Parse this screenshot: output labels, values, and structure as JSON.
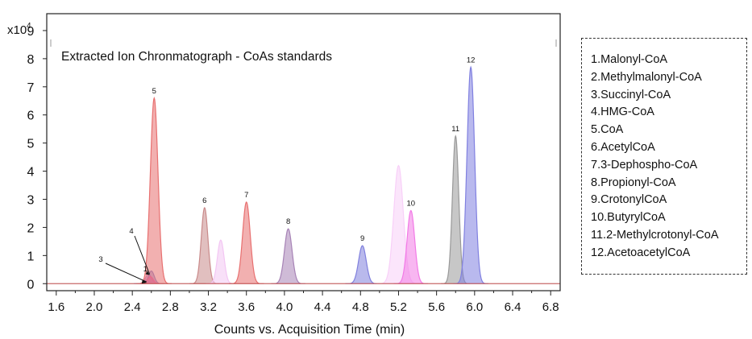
{
  "chart_data": {
    "type": "area",
    "title": "Extracted Ion Chronmatograph - CoAs standards",
    "xlabel": "Counts vs. Acquisition Time (min)",
    "ylabel": "",
    "y_multiplier_label": "x10",
    "y_multiplier_exp": "4",
    "xlim": [
      1.5,
      6.9
    ],
    "ylim": [
      -0.25,
      9.6
    ],
    "x_ticks": [
      "1.6",
      "2.0",
      "2.4",
      "2.8",
      "3.2",
      "3.6",
      "4.0",
      "4.4",
      "4.8",
      "5.2",
      "5.6",
      "6.0",
      "6.4",
      "6.8"
    ],
    "y_ticks": [
      "0",
      "1",
      "2",
      "3",
      "4",
      "5",
      "6",
      "7",
      "8",
      "9"
    ],
    "grid": false,
    "legend_position": "right",
    "legend": [
      "1.Malonyl-CoA",
      "2.Methylmalonyl-CoA",
      "3.Succinyl-CoA",
      "4.HMG-CoA",
      "5.CoA",
      "6.AcetylCoA",
      "7.3-Dephospho-CoA",
      "8.Propionyl-CoA",
      "9.CrotonylCoA",
      "10.ButyrylCoA",
      "11.2-Methylcrotonyl-CoA",
      "12.AcetoacetylCoA"
    ],
    "peaks": [
      {
        "label": "1",
        "rt": 2.57,
        "height": 0.35,
        "width": 0.03,
        "color": "#cc88cc"
      },
      {
        "label": "",
        "rt": 2.6,
        "height": 0.45,
        "width": 0.03,
        "color": "#8888cc"
      },
      {
        "label": "3",
        "rt": 2.55,
        "height": 0.12,
        "width": 0.03,
        "color": "#9999dd"
      },
      {
        "label": "4",
        "rt": 2.59,
        "height": 0.25,
        "width": 0.03,
        "color": "#ee66aa"
      },
      {
        "label": "5",
        "rt": 2.63,
        "height": 6.6,
        "width": 0.04,
        "color": "#e87070"
      },
      {
        "label": "6",
        "rt": 3.16,
        "height": 2.7,
        "width": 0.035,
        "color": "#c98a8a"
      },
      {
        "label": "",
        "rt": 3.33,
        "height": 1.55,
        "width": 0.035,
        "color": "#f3c6f3"
      },
      {
        "label": "7",
        "rt": 3.6,
        "height": 2.9,
        "width": 0.04,
        "color": "#e87070"
      },
      {
        "label": "8",
        "rt": 4.04,
        "height": 1.95,
        "width": 0.04,
        "color": "#a783b6"
      },
      {
        "label": "9",
        "rt": 4.82,
        "height": 1.35,
        "width": 0.04,
        "color": "#8080dd"
      },
      {
        "label": "",
        "rt": 5.2,
        "height": 4.2,
        "width": 0.05,
        "color": "#f8d0f8"
      },
      {
        "label": "10",
        "rt": 5.33,
        "height": 2.6,
        "width": 0.04,
        "color": "#f27ae6"
      },
      {
        "label": "11",
        "rt": 5.8,
        "height": 5.25,
        "width": 0.033,
        "color": "#999999"
      },
      {
        "label": "12",
        "rt": 5.96,
        "height": 7.7,
        "width": 0.04,
        "color": "#8080e0"
      }
    ]
  }
}
